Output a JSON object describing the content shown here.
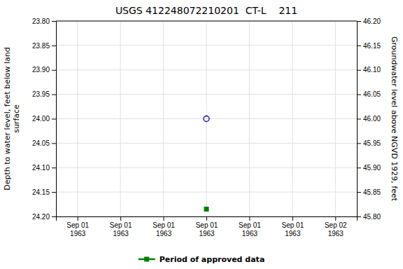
{
  "chart_data": {
    "type": "scatter",
    "title": "USGS 412248072210201  CT-L    211",
    "categories": [
      "Sep 01\n1963",
      "Sep 01\n1963",
      "Sep 01\n1963",
      "Sep 01\n1963",
      "Sep 01\n1963",
      "Sep 01\n1963",
      "Sep 02\n1963"
    ],
    "series": [
      {
        "color": "#0000bb",
        "marker": "open-circle",
        "values": [
          null,
          null,
          null,
          24.0,
          null,
          null,
          null
        ]
      },
      {
        "name": "Period of approved data",
        "color": "#008000",
        "marker": "square",
        "values": [
          null,
          null,
          null,
          24.185,
          null,
          null,
          null
        ]
      }
    ],
    "ylabel": "Depth to water level, feet below land\nsurface",
    "y2label": "Groundwater level above NGVD 1929, feet",
    "ylim": [
      24.2,
      23.8
    ],
    "yticks": [
      {
        "value": 23.8,
        "label": "23.80"
      },
      23.85,
      {
        "value": 23.9,
        "label": "23.90"
      },
      23.95,
      {
        "value": 24.0,
        "label": "24.00"
      },
      24.05,
      {
        "value": 24.1,
        "label": "24.10"
      },
      24.15,
      {
        "value": 24.2,
        "label": "24.20"
      }
    ],
    "y2lim": [
      45.8,
      46.2
    ],
    "y2ticks": [
      {
        "value": 46.2,
        "label": "46.20"
      },
      46.15,
      {
        "value": 46.1,
        "label": "46.10"
      },
      46.05,
      {
        "value": 46.0,
        "label": "46.00"
      },
      45.95,
      {
        "value": 45.9,
        "label": "45.90"
      },
      45.85,
      {
        "value": 45.8,
        "label": "45.80"
      }
    ],
    "grid": true,
    "legend": "bottom"
  }
}
